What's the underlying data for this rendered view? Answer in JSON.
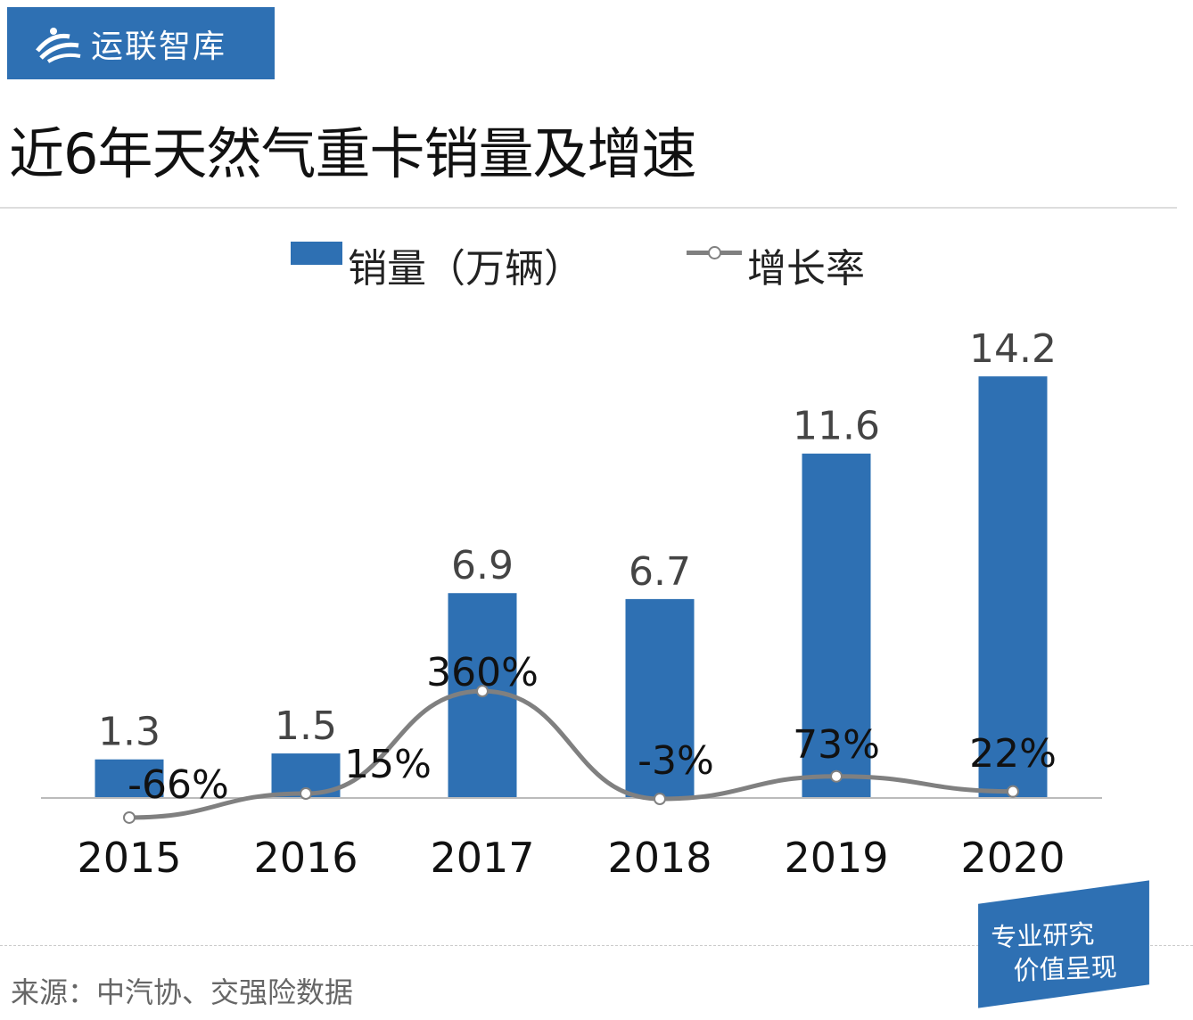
{
  "brand": {
    "name": "运联智库",
    "color": "#2e70b3"
  },
  "watermark": "运联智库",
  "title": "近6年天然气重卡销量及增速",
  "legend": {
    "bar_label": "销量（万辆）",
    "line_label": "增长率"
  },
  "chart_data": {
    "type": "bar+line",
    "title": "近6年天然气重卡销量及增速",
    "categories": [
      "2015",
      "2016",
      "2017",
      "2018",
      "2019",
      "2020"
    ],
    "series": [
      {
        "name": "销量（万辆）",
        "type": "bar",
        "color": "#2e70b3",
        "values": [
          1.3,
          1.5,
          6.9,
          6.7,
          11.6,
          14.2
        ],
        "labels": [
          "1.3",
          "1.5",
          "6.9",
          "6.7",
          "11.6",
          "14.2"
        ]
      },
      {
        "name": "增长率",
        "type": "line",
        "color": "#808080",
        "values": [
          -66,
          15,
          360,
          -3,
          73,
          22
        ],
        "labels": [
          "-66%",
          "15%",
          "360%",
          "-3%",
          "73%",
          "22%"
        ]
      }
    ],
    "grid": false,
    "legend_position": "top"
  },
  "source": "来源：中汽协、交强险数据",
  "badge": {
    "line1": "专业研究",
    "line2": "价值呈现"
  }
}
